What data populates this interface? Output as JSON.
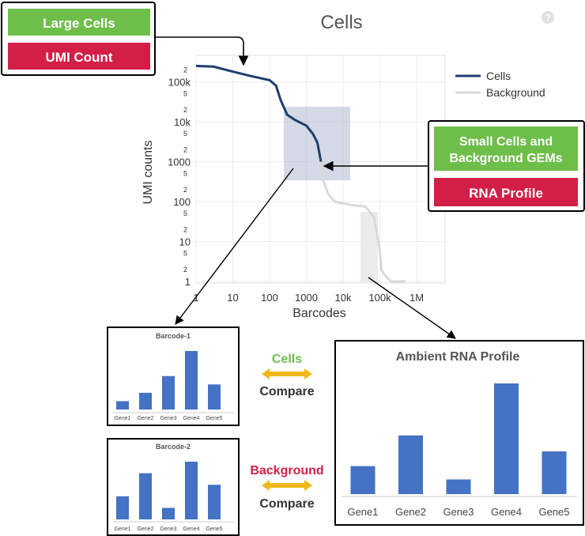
{
  "title": "Cells",
  "help_icon": "question-circle-icon",
  "callouts": {
    "large": {
      "label": "Large Cells",
      "metric": "UMI Count"
    },
    "small": {
      "label_line1": "Small Cells and",
      "label_line2": "Background GEMs",
      "metric": "RNA Profile"
    }
  },
  "colors": {
    "green": "#6ebe4a",
    "red": "#d31f48",
    "bar_blue": "#4472c4",
    "cells_line": "#1f3e6e",
    "background_line": "#d9d9d9",
    "arrow_yellow": "#efb81a"
  },
  "main_chart": {
    "type": "line",
    "xlabel": "Barcodes",
    "ylabel": "UMI counts",
    "x_scale": "log",
    "y_scale": "log",
    "x_ticks": [
      "1",
      "10",
      "100",
      "1000",
      "10k",
      "100k",
      "1M"
    ],
    "y_major_ticks": [
      "1",
      "10",
      "100",
      "1000",
      "10k",
      "100k"
    ],
    "y_minor_label": "2",
    "y_minor_label_5": "5",
    "legend": [
      "Cells",
      "Background"
    ],
    "legend_position": "top-right",
    "grid": true
  },
  "compare_cells": {
    "word": "Cells",
    "action": "Compare"
  },
  "compare_background": {
    "word": "Background",
    "action": "Compare"
  },
  "chart_data": [
    {
      "type": "line",
      "x_scale": "log",
      "y_scale": "log",
      "xlabel": "Barcodes",
      "ylabel": "UMI counts",
      "xlim": [
        1,
        1000000
      ],
      "ylim": [
        1,
        300000
      ],
      "series": [
        {
          "name": "Cells",
          "points": [
            [
              1,
              250000
            ],
            [
              3,
              240000
            ],
            [
              10,
              180000
            ],
            [
              30,
              140000
            ],
            [
              100,
              110000
            ],
            [
              150,
              80000
            ],
            [
              200,
              35000
            ],
            [
              300,
              15000
            ],
            [
              500,
              11000
            ],
            [
              1000,
              8000
            ],
            [
              1500,
              5000
            ],
            [
              2000,
              3000
            ],
            [
              2500,
              1000
            ]
          ]
        },
        {
          "name": "Background",
          "points": [
            [
              2500,
              1000
            ],
            [
              3000,
              300
            ],
            [
              4000,
              150
            ],
            [
              6000,
              100
            ],
            [
              10000,
              90
            ],
            [
              20000,
              80
            ],
            [
              40000,
              75
            ],
            [
              50000,
              60
            ],
            [
              70000,
              40
            ],
            [
              100000,
              6
            ],
            [
              110000,
              2
            ],
            [
              130000,
              1.5
            ],
            [
              200000,
              1
            ],
            [
              500000,
              1
            ]
          ]
        }
      ]
    },
    {
      "type": "bar",
      "title": "Barcode-1",
      "categories": [
        "Gene1",
        "Gene2",
        "Gene3",
        "Gene4",
        "Gene5"
      ],
      "values": [
        1,
        2,
        4,
        7,
        3
      ]
    },
    {
      "type": "bar",
      "title": "Barcode-2",
      "categories": [
        "Gene1",
        "Gene2",
        "Gene3",
        "Gene4",
        "Gene5"
      ],
      "values": [
        1.6,
        3.2,
        0.8,
        4.0,
        2.4
      ]
    },
    {
      "type": "bar",
      "title": "Ambient RNA Profile",
      "categories": [
        "Gene1",
        "Gene2",
        "Gene3",
        "Gene4",
        "Gene5"
      ],
      "values": [
        2.1,
        4.4,
        1.1,
        8.3,
        3.2
      ]
    }
  ]
}
